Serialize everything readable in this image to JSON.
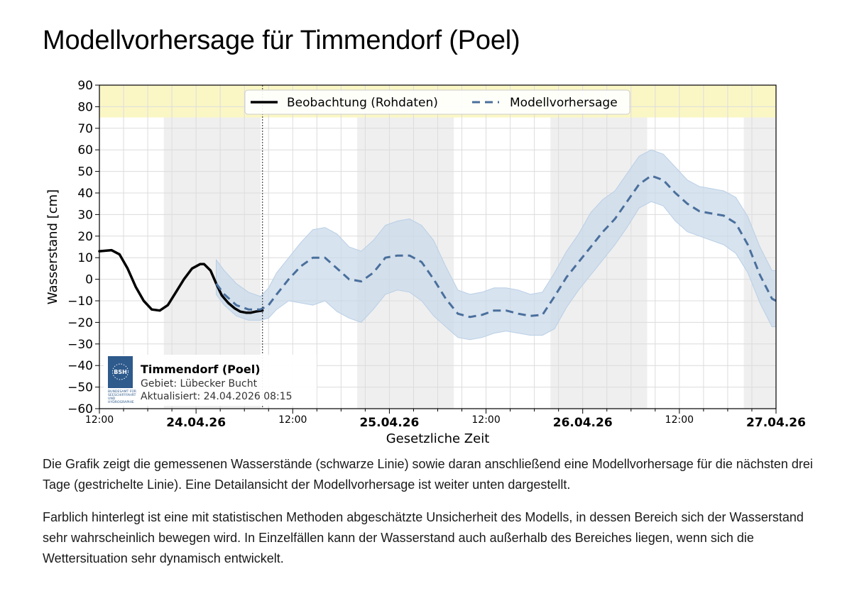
{
  "page": {
    "title": "Modellvorhersage für Timmendorf (Poel)",
    "paragraphs": [
      "Die Grafik zeigt die gemessenen Wasserstände (schwarze Linie) sowie daran anschließend eine Modellvorhersage für die nächsten drei Tage (gestrichelte Linie). Eine Detailansicht der Modellvorhersage ist weiter unten dargestellt.",
      "Farblich hinterlegt ist eine mit statistischen Methoden abgeschätzte Unsicherheit des Modells, in dessen Bereich sich der Wasserstand sehr wahrscheinlich bewegen wird. In Einzelfällen kann der Wasserstand auch außerhalb des Bereiches liegen, wenn sich die Wettersituation sehr dynamisch entwickelt."
    ]
  },
  "chart_data": {
    "type": "line",
    "xlabel": "Gesetzliche Zeit",
    "ylabel": "Wasserstand [cm]",
    "xlim_hours": [
      0,
      84
    ],
    "ylim": [
      -60,
      90
    ],
    "yticks": [
      90,
      80,
      70,
      60,
      50,
      40,
      30,
      20,
      10,
      0,
      -10,
      -20,
      -30,
      -40,
      -50,
      -60
    ],
    "ytick_labels": [
      "90",
      "80",
      "70",
      "60",
      "50",
      "40",
      "30",
      "20",
      "10",
      "0",
      "−10",
      "−20",
      "−30",
      "−40",
      "−50",
      "−60"
    ],
    "xticks": [
      {
        "h": 0,
        "label": "12:00",
        "bold": false
      },
      {
        "h": 12,
        "label": "24.04.26",
        "bold": true
      },
      {
        "h": 24,
        "label": "12:00",
        "bold": false
      },
      {
        "h": 36,
        "label": "25.04.26",
        "bold": true
      },
      {
        "h": 48,
        "label": "12:00",
        "bold": false
      },
      {
        "h": 60,
        "label": "26.04.26",
        "bold": true
      },
      {
        "h": 72,
        "label": "12:00",
        "bold": false
      },
      {
        "h": 84,
        "label": "27.04.26",
        "bold": true
      }
    ],
    "x_origin": "23.04.26 12:00",
    "warning_band": [
      75,
      90
    ],
    "night_shading_hours": [
      [
        8,
        20
      ],
      [
        32,
        44
      ],
      [
        56,
        68
      ],
      [
        80,
        84
      ]
    ],
    "now_line_hours": 20.25,
    "legend": [
      "Beobachtung (Rohdaten)",
      "Modellvorhersage"
    ],
    "series": [
      {
        "name": "Beobachtung (Rohdaten)",
        "x": [
          0,
          1.5,
          2.5,
          3.5,
          4.5,
          5.5,
          6.5,
          7.5,
          8.5,
          9.5,
          10.5,
          11.5,
          12.5,
          13,
          13.8,
          14.5,
          15.2,
          16,
          16.8,
          17.5,
          18.2,
          18.8,
          19.4,
          20.25
        ],
        "values": [
          13,
          13.5,
          11.5,
          5,
          -3.5,
          -10,
          -14,
          -14.5,
          -12,
          -6,
          0,
          5,
          7,
          7,
          4,
          -2,
          -7.5,
          -11,
          -13.5,
          -15,
          -15.5,
          -15.5,
          -15,
          -14.5
        ]
      },
      {
        "name": "Modellvorhersage",
        "x": [
          14.5,
          15.5,
          17,
          18.5,
          20,
          21,
          22,
          23.5,
          25,
          26.5,
          28,
          29.5,
          31,
          32.5,
          34,
          35.5,
          37,
          38.5,
          40,
          41.5,
          43,
          44.5,
          46,
          47.5,
          49,
          50.5,
          52,
          53.5,
          55,
          56.5,
          58,
          59.5,
          61,
          62.5,
          64,
          65.5,
          67,
          68.5,
          70,
          71.5,
          73,
          74.5,
          76,
          77.5,
          79,
          80.5,
          82,
          83.5,
          84
        ],
        "values": [
          -2,
          -7,
          -12,
          -14,
          -14,
          -12,
          -7,
          0,
          6,
          10,
          10,
          5,
          0,
          -1,
          3,
          10,
          11,
          11,
          8,
          0,
          -9,
          -16,
          -17.5,
          -16.5,
          -14.5,
          -14.5,
          -16,
          -17,
          -16.5,
          -8,
          1,
          8,
          15,
          22,
          28,
          36,
          44,
          48,
          46,
          40,
          35,
          31.5,
          30.5,
          29.5,
          26,
          16,
          2,
          -9,
          -10
        ]
      }
    ],
    "uncertainty_band": {
      "x": [
        14.5,
        15.5,
        17,
        18.5,
        20,
        21,
        22,
        23.5,
        25,
        26.5,
        28,
        29.5,
        31,
        32.5,
        34,
        35.5,
        37,
        38.5,
        40,
        41.5,
        43,
        44.5,
        46,
        47.5,
        49,
        50.5,
        52,
        53.5,
        55,
        56.5,
        58,
        59.5,
        61,
        62.5,
        64,
        65.5,
        67,
        68.5,
        70,
        71.5,
        73,
        74.5,
        76,
        77.5,
        79,
        80.5,
        82,
        83.5,
        84
      ],
      "lower": [
        -7,
        -12,
        -17,
        -19,
        -19,
        -18,
        -14,
        -10,
        -11,
        -12,
        -10,
        -15,
        -18,
        -20,
        -14,
        -7,
        -5,
        -6,
        -10,
        -17,
        -22,
        -27,
        -28,
        -27,
        -25,
        -24,
        -25,
        -26,
        -26,
        -23,
        -13,
        -5,
        2,
        9,
        16,
        24,
        33,
        36,
        34,
        27,
        22,
        20,
        18,
        16,
        12,
        3,
        -11,
        -22,
        -22
      ],
      "upper": [
        9,
        4,
        -2,
        -6,
        -8,
        -4,
        3,
        10,
        17,
        23,
        24,
        21,
        15,
        13,
        18,
        25,
        27,
        28,
        25,
        18,
        6,
        -5,
        -7,
        -6,
        -4,
        -4,
        -5,
        -7,
        -6,
        3,
        13,
        21,
        31,
        37,
        41,
        49,
        57,
        60,
        58,
        52,
        46,
        43,
        42,
        41,
        38,
        29,
        15,
        4,
        4
      ]
    },
    "info_box": {
      "logo_text": "BUNDESAMT FÜR SEESCHIFFFAHRT UND HYDROGRAPHIE",
      "logo_short": "BSH",
      "station": "Timmendorf (Poel)",
      "area": "Gebiet: Lübecker Bucht",
      "updated": "Aktualisiert: 24.04.2026 08:15"
    },
    "colors": {
      "observation": "#000000",
      "forecast": "#4a6f9c",
      "band": "#c9d9ea",
      "warning": "#fbf7c5",
      "night": "#efefef",
      "logo": "#2e5a8c"
    }
  }
}
